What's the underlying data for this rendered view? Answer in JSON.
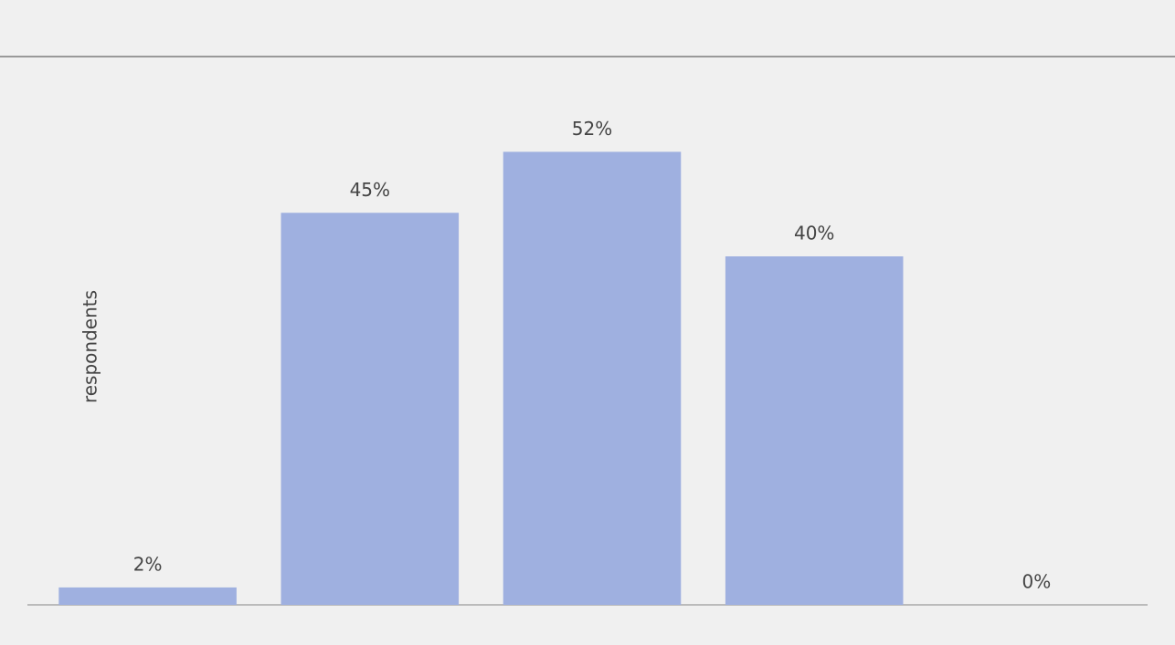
{
  "chart_data": {
    "type": "bar",
    "y_label": "respondents",
    "categories": [
      null,
      null,
      null,
      null,
      null
    ],
    "values": [
      2,
      45,
      52,
      40,
      0
    ],
    "value_labels": [
      "2%",
      "45%",
      "52%",
      "40%",
      "0%"
    ],
    "color": "#9fb0e0",
    "ylim": [
      0,
      60
    ]
  }
}
